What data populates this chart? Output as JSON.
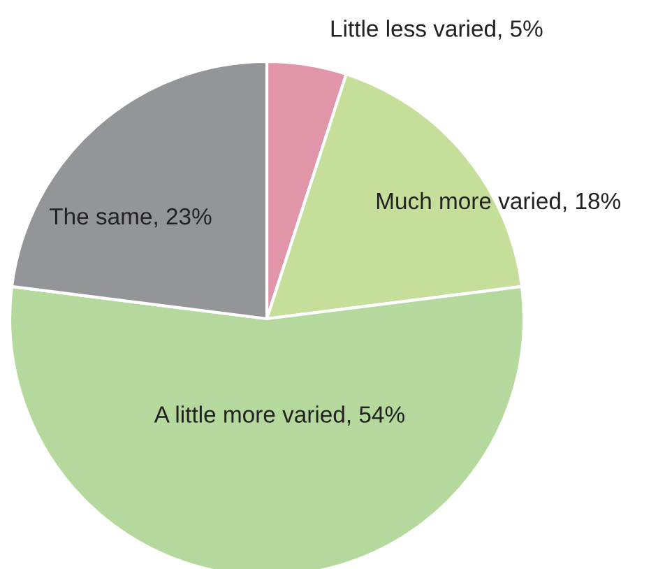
{
  "chart_data": {
    "type": "pie",
    "categories": [
      "Little less varied",
      "Much more varied",
      "A little more varied",
      "The same"
    ],
    "values": [
      5,
      18,
      54,
      23
    ],
    "value_labels": [
      "5%",
      "18%",
      "54%",
      "23%"
    ],
    "colors": [
      "#e096a8",
      "#c5de9a",
      "#b5d99c",
      "#939598"
    ]
  }
}
